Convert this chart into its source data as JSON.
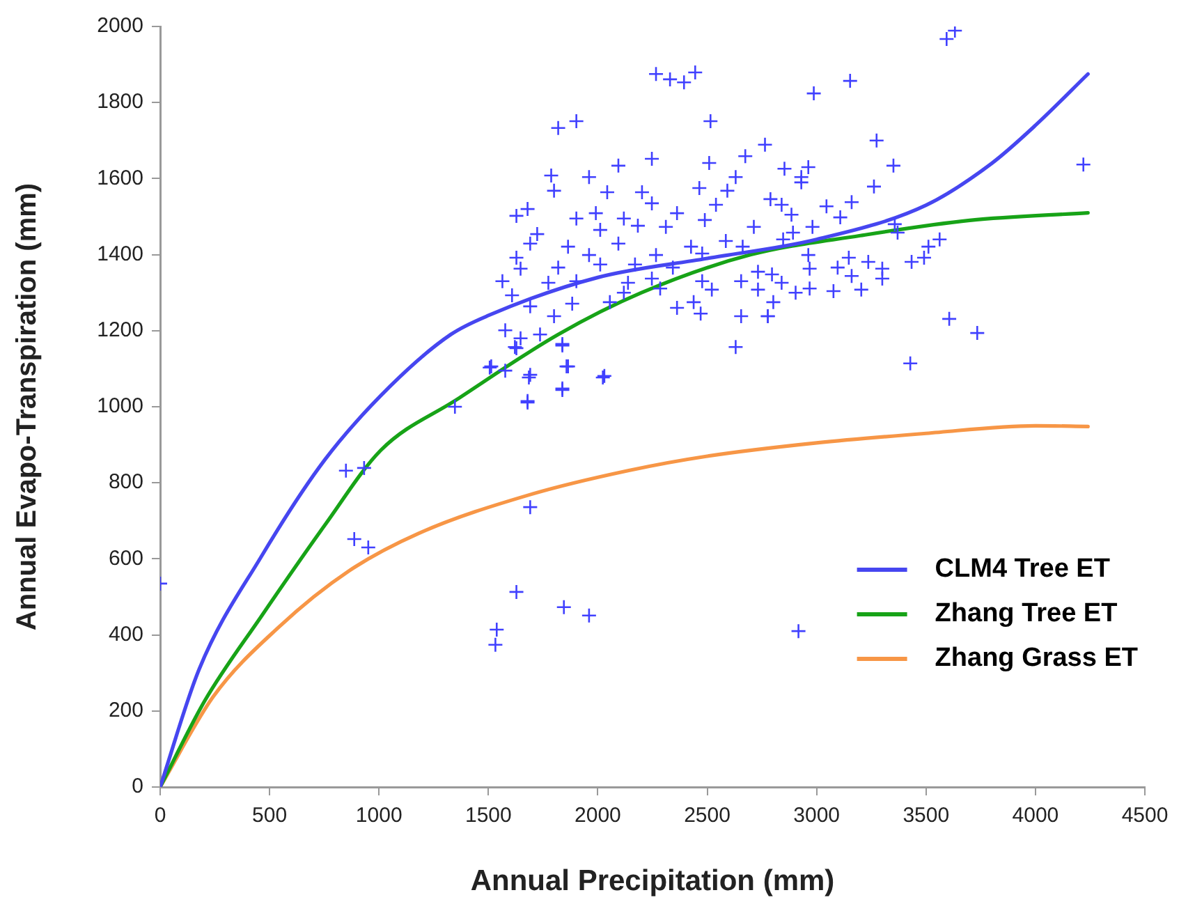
{
  "chart_data": {
    "type": "scatter",
    "xlabel": "Annual Precipitation (mm)",
    "ylabel": "Annual Evapo-Transpiration (mm)",
    "xlim": [
      0,
      4500
    ],
    "xticks": [
      0,
      500,
      1000,
      1500,
      2000,
      2500,
      3000,
      3500,
      4000,
      4500
    ],
    "ylim": [
      0,
      2000
    ],
    "yticks": [
      0,
      200,
      400,
      600,
      800,
      1000,
      1200,
      1400,
      1600,
      1800,
      2000
    ],
    "grid": false,
    "legend": "bottom right",
    "series": [
      {
        "type": "scatter",
        "marker": "cross",
        "color": "#4040ff",
        "x": [
          0,
          849,
          932,
          887,
          951,
          1347,
          1506,
          1577,
          1685,
          1679,
          1838,
          1857,
          1838,
          2023,
          1691,
          1628,
          1845,
          1960,
          1538,
          1532,
          1621,
          1647,
          3632,
          3594,
          3153,
          2987,
          2764,
          3274,
          2853,
          2962,
          2930,
          2930,
          3351,
          3262,
          2789,
          3160,
          3045,
          2840,
          2885,
          3108,
          2981,
          2892,
          3357,
          3370,
          2847,
          3562,
          3511,
          3491,
          3434,
          2962,
          3147,
          3236,
          3096,
          3300,
          3300,
          3160,
          2968,
          2796,
          2840,
          2968,
          3077,
          3204,
          2904,
          2732,
          2802,
          2777,
          3606,
          3734,
          3428,
          4219,
          2266,
          2330,
          2394,
          2445,
          1819,
          1902,
          2515,
          2094,
          2247,
          2509,
          2674,
          1787,
          1800,
          1960,
          2630,
          2464,
          2592,
          2043,
          2202,
          2540,
          1628,
          1679,
          1991,
          2362,
          2247,
          1902,
          2119,
          2489,
          2713,
          1723,
          2011,
          2311,
          2183,
          1691,
          1864,
          2094,
          2426,
          2585,
          1628,
          1960,
          2266,
          2477,
          2662,
          1647,
          1819,
          2011,
          2170,
          2343,
          1564,
          1774,
          1902,
          2138,
          2247,
          2477,
          2655,
          2732,
          2119,
          2285,
          2521,
          1608,
          1883,
          2055,
          1691,
          1800,
          1577,
          1736,
          1628,
          1838,
          2362,
          2438,
          2470,
          2655,
          2630,
          2777,
          1864,
          2030,
          1691,
          1838,
          1679,
          1513,
          2917
        ],
        "values": [
          535,
          832,
          839,
          652,
          630,
          1000,
          1103,
          1095,
          1077,
          1011,
          1161,
          1106,
          1044,
          1077,
          736,
          513,
          473,
          451,
          414,
          374,
          1157,
          1180,
          1989,
          1967,
          1857,
          1824,
          1689,
          1700,
          1626,
          1630,
          1604,
          1590,
          1634,
          1579,
          1546,
          1538,
          1527,
          1531,
          1505,
          1498,
          1473,
          1458,
          1480,
          1458,
          1440,
          1440,
          1421,
          1392,
          1381,
          1399,
          1392,
          1381,
          1366,
          1363,
          1337,
          1344,
          1363,
          1348,
          1326,
          1311,
          1304,
          1308,
          1300,
          1308,
          1275,
          1238,
          1231,
          1194,
          1114,
          1637,
          1875,
          1861,
          1853,
          1879,
          1733,
          1751,
          1751,
          1634,
          1652,
          1641,
          1659,
          1608,
          1568,
          1604,
          1604,
          1575,
          1568,
          1564,
          1564,
          1531,
          1502,
          1520,
          1509,
          1509,
          1535,
          1495,
          1495,
          1491,
          1473,
          1454,
          1465,
          1473,
          1476,
          1429,
          1421,
          1429,
          1421,
          1436,
          1392,
          1399,
          1399,
          1403,
          1421,
          1363,
          1366,
          1374,
          1374,
          1366,
          1330,
          1326,
          1330,
          1326,
          1337,
          1330,
          1330,
          1355,
          1300,
          1311,
          1308,
          1293,
          1271,
          1275,
          1264,
          1238,
          1201,
          1190,
          1154,
          1165,
          1260,
          1275,
          1245,
          1238,
          1157,
          1238,
          1106,
          1081,
          1084,
          1048,
          1015,
          1106,
          410
        ]
      },
      {
        "type": "line",
        "name": "CLM4 Tree ET",
        "color": "#4646f0",
        "marker": "none",
        "x": [
          0,
          179,
          460,
          753,
          1053,
          1328,
          1500,
          2000,
          2500,
          3000,
          3500,
          3800,
          4000,
          4240
        ],
        "values": [
          0,
          311,
          604,
          861,
          1055,
          1190,
          1240,
          1340,
          1390,
          1440,
          1530,
          1640,
          1740,
          1875
        ]
      },
      {
        "type": "line",
        "name": "Zhang Tree ET",
        "color": "#17a317",
        "marker": "none",
        "x": [
          0,
          204,
          460,
          753,
          1009,
          1353,
          1819,
          2200,
          2700,
          3200,
          3700,
          4240
        ],
        "values": [
          0,
          227,
          447,
          689,
          886,
          1018,
          1190,
          1300,
          1400,
          1450,
          1490,
          1510
        ]
      },
      {
        "type": "line",
        "name": "Zhang Grass ET",
        "color": "#f79646",
        "marker": "none",
        "x": [
          0,
          243,
          543,
          862,
          1181,
          1691,
          2138,
          2500,
          3000,
          3500,
          4000,
          4240
        ],
        "values": [
          0,
          238,
          421,
          568,
          667,
          769,
          832,
          870,
          905,
          930,
          950,
          948
        ]
      }
    ]
  }
}
